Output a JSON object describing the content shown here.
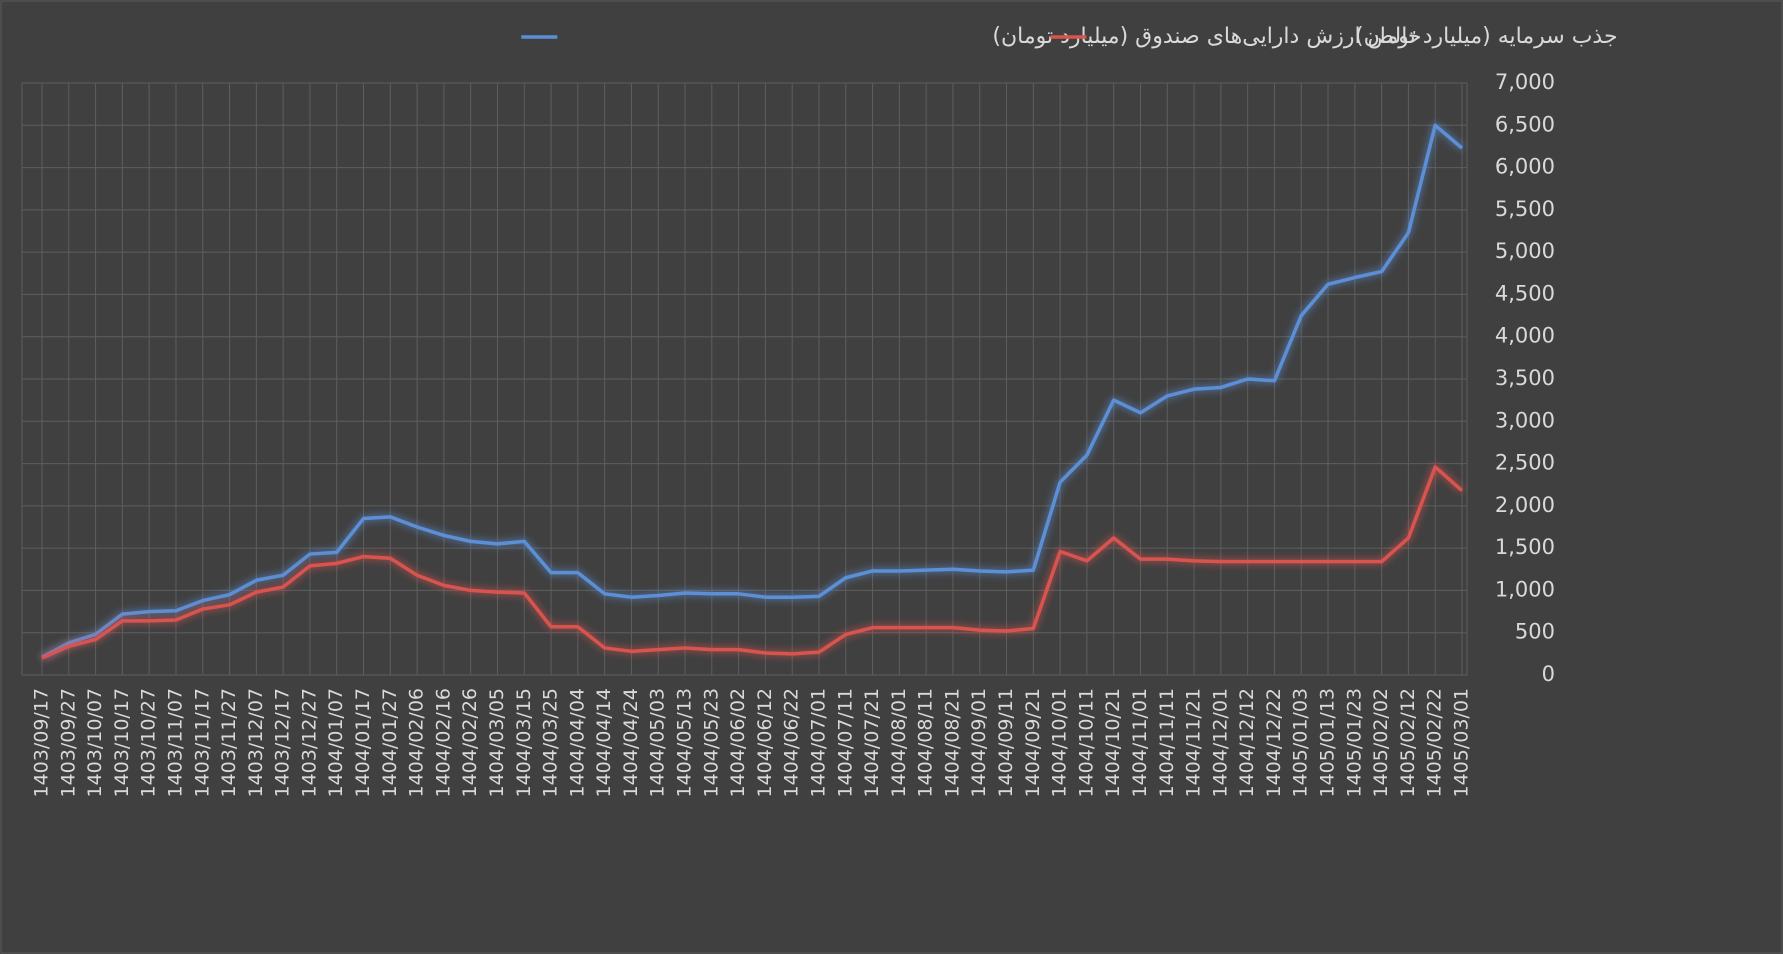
{
  "chart_data": {
    "type": "line",
    "categories": [
      "1403/09/17",
      "1403/09/27",
      "1403/10/07",
      "1403/10/17",
      "1403/10/27",
      "1403/11/07",
      "1403/11/17",
      "1403/11/27",
      "1403/12/07",
      "1403/12/17",
      "1403/12/27",
      "1404/01/07",
      "1404/01/17",
      "1404/01/27",
      "1404/02/06",
      "1404/02/16",
      "1404/02/26",
      "1404/03/05",
      "1404/03/15",
      "1404/03/25",
      "1404/04/04",
      "1404/04/14",
      "1404/04/24",
      "1404/05/03",
      "1404/05/13",
      "1404/05/23",
      "1404/06/02",
      "1404/06/12",
      "1404/06/22",
      "1404/07/01",
      "1404/07/11",
      "1404/07/21",
      "1404/08/01",
      "1404/08/11",
      "1404/08/21",
      "1404/09/01",
      "1404/09/11",
      "1404/09/21",
      "1404/10/01",
      "1404/10/11",
      "1404/10/21",
      "1404/11/01",
      "1404/11/11",
      "1404/11/21",
      "1404/12/01",
      "1404/12/12",
      "1404/12/22",
      "1405/01/03",
      "1405/01/13",
      "1405/01/23",
      "1405/02/02",
      "1405/02/12",
      "1405/02/22",
      "1405/03/01"
    ],
    "series": [
      {
        "name": "خالص ارزش دارایی‌های صندوق (میلیارد تومان)",
        "color": "#5b8fd6",
        "values": [
          210,
          380,
          480,
          720,
          750,
          760,
          880,
          950,
          1120,
          1180,
          1430,
          1450,
          1850,
          1870,
          1750,
          1650,
          1580,
          1550,
          1580,
          1210,
          1210,
          960,
          920,
          940,
          970,
          960,
          960,
          920,
          920,
          930,
          1150,
          1230,
          1230,
          1240,
          1250,
          1230,
          1220,
          1240,
          2280,
          2600,
          3250,
          3100,
          3300,
          3380,
          3400,
          3500,
          3480,
          4250,
          4620,
          4700,
          4770,
          5230,
          6500,
          6230
        ]
      },
      {
        "name": "جذب سرمایه (میلیارد تومان)",
        "color": "#d9534f",
        "values": [
          200,
          340,
          420,
          640,
          640,
          650,
          780,
          830,
          980,
          1040,
          1290,
          1320,
          1400,
          1380,
          1180,
          1060,
          1000,
          980,
          970,
          570,
          570,
          320,
          280,
          300,
          320,
          300,
          300,
          260,
          250,
          270,
          480,
          560,
          560,
          560,
          560,
          530,
          520,
          550,
          1460,
          1350,
          1620,
          1370,
          1370,
          1350,
          1340,
          1340,
          1340,
          1340,
          1340,
          1340,
          1340,
          1620,
          2460,
          2180
        ]
      }
    ],
    "ylim": [
      0,
      7000
    ],
    "yticks": [
      0,
      500,
      {
        "value": 1000,
        "label": "1,000"
      },
      {
        "value": 1500,
        "label": "1,500"
      },
      {
        "value": 2000,
        "label": "2,000"
      },
      {
        "value": 2500,
        "label": "2,500"
      },
      {
        "value": 3000,
        "label": "3,000"
      },
      {
        "value": 3500,
        "label": "3,500"
      },
      {
        "value": 4000,
        "label": "4,000"
      },
      {
        "value": 4500,
        "label": "4,500"
      },
      {
        "value": 5000,
        "label": "5,000"
      },
      {
        "value": 5500,
        "label": "5,500"
      },
      {
        "value": 6000,
        "label": "6,000"
      },
      {
        "value": 6500,
        "label": "6,500"
      },
      {
        "value": 7000,
        "label": "7,000"
      }
    ],
    "grid": true,
    "legend": "top"
  }
}
